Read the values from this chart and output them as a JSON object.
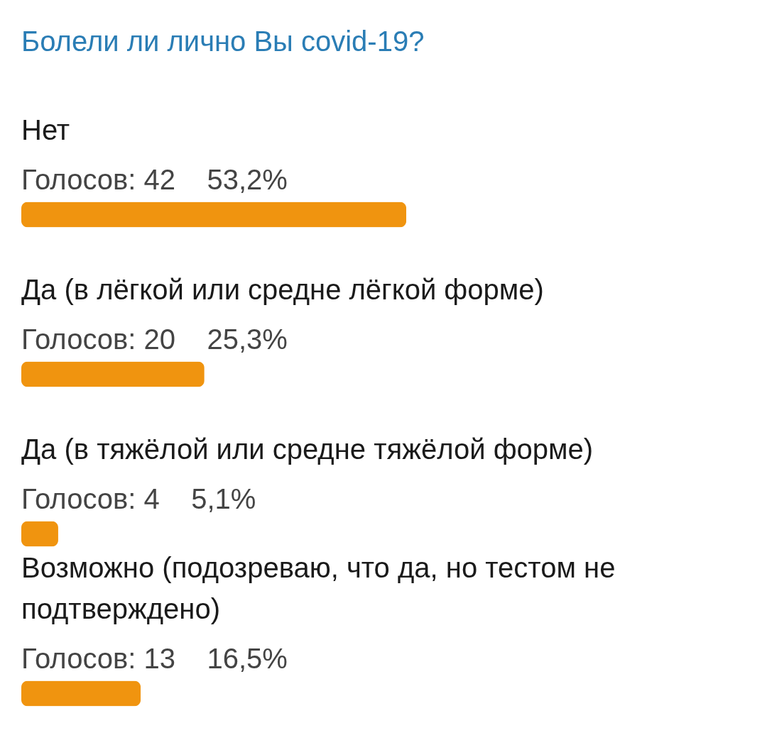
{
  "chart_data": {
    "type": "bar",
    "orientation": "horizontal",
    "title": "Болели ли лично Вы covid-19?",
    "categories": [
      "Нет",
      "Да (в лёгкой или средне лёгкой форме)",
      "Да (в тяжёлой или средне тяжёлой форме)",
      "Возможно (подозреваю, что да, но тестом не подтверждено)"
    ],
    "values": [
      53.2,
      25.3,
      5.1,
      16.5
    ],
    "value_labels": [
      "Голосов: 42    53,2%",
      "Голосов: 20    25,3%",
      "Голосов: 4    5,1%",
      "Голосов: 13    16,5%"
    ],
    "color": "#f0940f"
  }
}
